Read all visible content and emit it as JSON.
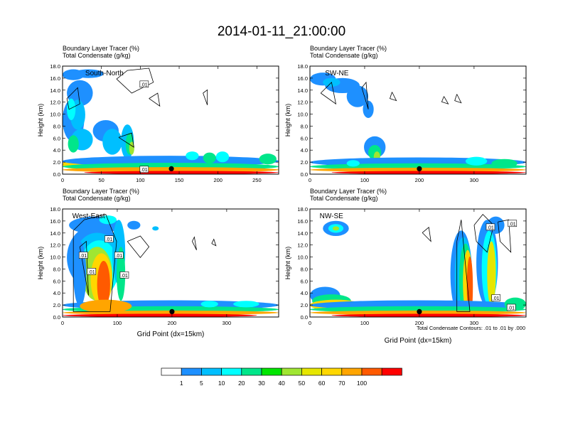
{
  "figure": {
    "title": "2014-01-11_21:00:00",
    "contour_note": "Total Condensate Contours: .01 to .01 by .000"
  },
  "chart_data": [
    {
      "type": "heatmap",
      "name": "South-North",
      "line1": "Boundary Layer Tracer   (%)",
      "line2": "Total Condensate   (g/kg)",
      "xlabel": "",
      "ylabel": "Height (km)",
      "xlim": [
        0,
        278
      ],
      "ylim": [
        0,
        18
      ],
      "xticks": [
        0,
        50,
        100,
        150,
        200,
        250
      ],
      "yticks": [
        "0.0",
        "2.0",
        "4.0",
        "6.0",
        "8.0",
        "10.0",
        "12.0",
        "14.0",
        "16.0",
        "18.0"
      ],
      "marker_x": 140,
      "contour_labels": [
        {
          "text": ".01",
          "x": 105,
          "y": 15.0
        },
        {
          "text": ".01",
          "x": 105,
          "y": 0.8
        }
      ]
    },
    {
      "type": "heatmap",
      "name": "SW-NE",
      "line1": "Boundary Layer Tracer   (%)",
      "line2": "Total Condensate   (g/kg)",
      "xlabel": "",
      "ylabel": "Height (km)",
      "xlim": [
        0,
        395
      ],
      "ylim": [
        0,
        18
      ],
      "xticks": [
        0,
        100,
        200,
        300
      ],
      "yticks": [
        "0.0",
        "2.0",
        "4.0",
        "6.0",
        "8.0",
        "10.0",
        "12.0",
        "14.0",
        "16.0",
        "18.0"
      ],
      "marker_x": 200,
      "contour_labels": []
    },
    {
      "type": "heatmap",
      "name": "West-East",
      "line1": "Boundary Layer Tracer   (%)",
      "line2": "Total Condensate   (g/kg)",
      "xlabel": "Grid Point (dx=15km)",
      "ylabel": "Height (km)",
      "xlim": [
        0,
        395
      ],
      "ylim": [
        0,
        18
      ],
      "xticks": [
        0,
        100,
        200,
        300
      ],
      "yticks": [
        "0.0",
        "2.0",
        "4.0",
        "6.0",
        "8.0",
        "10.0",
        "12.0",
        "14.0",
        "16.0",
        "18.0"
      ],
      "marker_x": 200,
      "contour_labels": [
        {
          "text": ".01",
          "x": 85,
          "y": 13.0
        },
        {
          "text": ".01",
          "x": 38,
          "y": 10.3
        },
        {
          "text": ".01",
          "x": 103,
          "y": 10.3
        },
        {
          "text": ".01",
          "x": 53,
          "y": 7.6
        },
        {
          "text": ".01",
          "x": 113,
          "y": 7.0
        }
      ]
    },
    {
      "type": "heatmap",
      "name": "NW-SE",
      "line1": "Boundary Layer Tracer   (%)",
      "line2": "Total Condensate   (g/kg)",
      "xlabel": "Grid Point (dx=15km)",
      "ylabel": "Height (km)",
      "xlim": [
        0,
        395
      ],
      "ylim": [
        0,
        18
      ],
      "xticks": [
        0,
        100,
        200,
        300
      ],
      "yticks": [
        "0.0",
        "2.0",
        "4.0",
        "6.0",
        "8.0",
        "10.0",
        "12.0",
        "14.0",
        "16.0",
        "18.0"
      ],
      "marker_x": 200,
      "contour_labels": [
        {
          "text": ".01",
          "x": 330,
          "y": 15.0
        },
        {
          "text": ".01",
          "x": 370,
          "y": 15.6
        },
        {
          "text": ".01",
          "x": 340,
          "y": 3.2
        },
        {
          "text": ".01",
          "x": 368,
          "y": 1.6
        }
      ]
    }
  ],
  "colorbar": {
    "labels": [
      "1",
      "5",
      "10",
      "20",
      "30",
      "40",
      "50",
      "60",
      "70",
      "100"
    ],
    "colors": [
      "#ffffff",
      "#1e90ff",
      "#00bfff",
      "#00ffff",
      "#00e68a",
      "#00e600",
      "#a0e632",
      "#e6e600",
      "#ffd700",
      "#ffa500",
      "#ff5a00",
      "#ff0000"
    ]
  }
}
